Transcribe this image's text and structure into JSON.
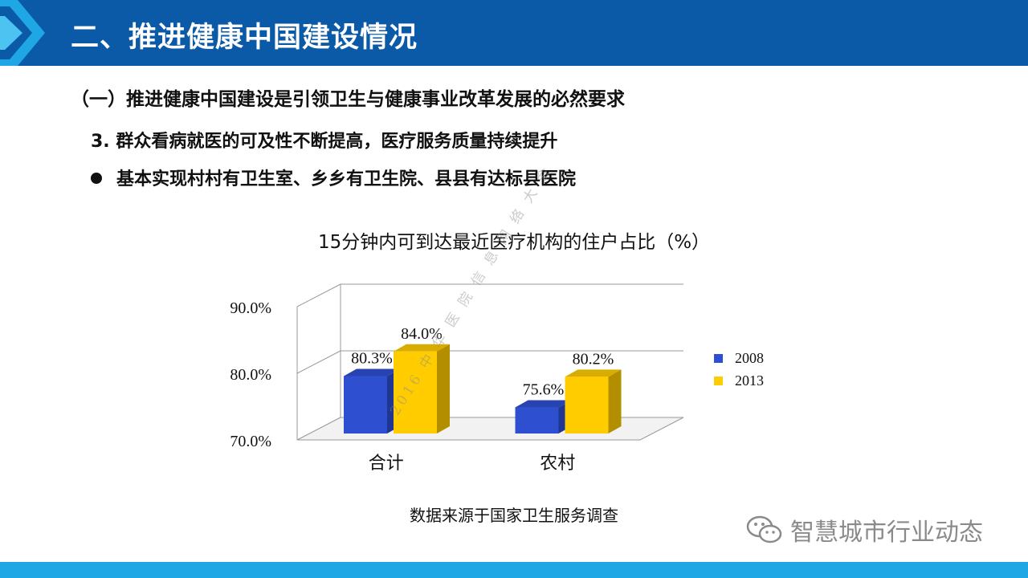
{
  "header": {
    "title": "二、推进健康中国建设情况"
  },
  "section": {
    "subtitle": "（一）推进健康中国建设是引领卫生与健康事业改革发展的必然要求"
  },
  "point": {
    "text": "3.  群众看病就医的可及性不断提高，医疗服务质量持续提升"
  },
  "bullet": {
    "text": "基本实现村村有卫生室、乡乡有卫生院、县县有达标县医院"
  },
  "chart_data": {
    "type": "bar",
    "title": "15分钟内可到达最近医疗机构的住户占比（%）",
    "categories": [
      "合计",
      "农村"
    ],
    "series": [
      {
        "name": "2008",
        "values": [
          80.3,
          75.6
        ],
        "labels": [
          "80.3%",
          "75.6%"
        ],
        "color": "#2e4fd0"
      },
      {
        "name": "2013",
        "values": [
          84.0,
          80.2
        ],
        "labels": [
          "84.0%",
          "80.2%"
        ],
        "color": "#ffcc00"
      }
    ],
    "ylim": [
      70,
      90
    ],
    "yticks": [
      {
        "value": 70,
        "label": "70.0%"
      },
      {
        "value": 80,
        "label": "80.0%"
      },
      {
        "value": 90,
        "label": "90.0%"
      }
    ],
    "grid": true,
    "legend": "right",
    "three_d": true
  },
  "source_note": "数据来源于国家卫生服务调查",
  "watermark": {
    "brand": "智慧城市行业动态",
    "overlay": "2016 中 华 医 院 信 息 网 络 大 会",
    "icon": "wechat-icon"
  },
  "colors": {
    "title_bar": "#0b5aa7",
    "bottom_bar": "#1ea7e4",
    "bar_2008": "#2e4fd0",
    "bar_2013": "#ffcc00"
  }
}
